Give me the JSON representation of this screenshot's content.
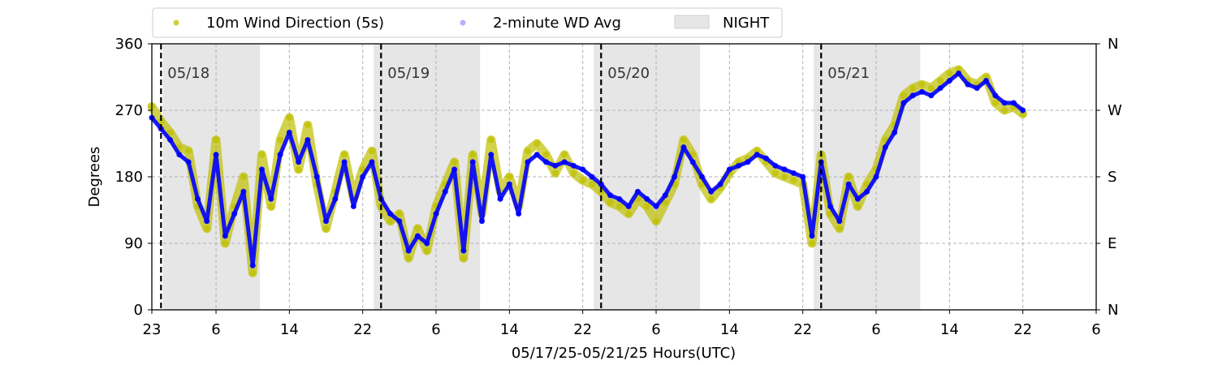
{
  "chart_data": {
    "type": "scatter",
    "title": "",
    "xlabel": "05/17/25-05/21/25  Hours(UTC)",
    "ylabel": "Degrees",
    "x_tick_labels": [
      "23",
      "6",
      "14",
      "22",
      "6",
      "14",
      "22",
      "6",
      "14",
      "22",
      "6",
      "14",
      "22",
      "6"
    ],
    "x_tick_hours": [
      23,
      30,
      38,
      46,
      54,
      62,
      70,
      78,
      86,
      94,
      102,
      110,
      118,
      126
    ],
    "x_range_hours": [
      23,
      126
    ],
    "y_ticks": [
      0,
      90,
      180,
      270,
      360
    ],
    "y_tick_labels": [
      "0",
      "90",
      "180",
      "270",
      "360"
    ],
    "ylim": [
      0,
      360
    ],
    "right_axis_labels": [
      "N",
      "E",
      "S",
      "W",
      "N"
    ],
    "grid": true,
    "legend_placement": "top-left, above plot",
    "legend": [
      {
        "name": "10m Wind Direction (5s)",
        "kind": "marker",
        "color": "#bfbf00"
      },
      {
        "name": "2-minute WD Avg",
        "kind": "marker",
        "color": "#0000ff"
      },
      {
        "name": "NIGHT",
        "kind": "patch",
        "color": "#e0e0e0"
      }
    ],
    "day_boundaries": [
      {
        "hour": 24,
        "label": "05/18"
      },
      {
        "hour": 48,
        "label": "05/19"
      },
      {
        "hour": 72,
        "label": "05/20"
      },
      {
        "hour": 96,
        "label": "05/21"
      }
    ],
    "night_periods": [
      {
        "start": 24.2,
        "end": 34.8
      },
      {
        "start": 47.2,
        "end": 58.8
      },
      {
        "start": 71.2,
        "end": 82.8
      },
      {
        "start": 95.2,
        "end": 106.8
      }
    ],
    "data_end_hour": 118,
    "series": [
      {
        "name": "2-minute WD Avg",
        "color": "#0000ff",
        "x": [
          23.0,
          24.0,
          25.0,
          26.0,
          27.0,
          28.0,
          29.0,
          30.0,
          31.0,
          32.0,
          33.0,
          34.0,
          35.0,
          36.0,
          37.0,
          38.0,
          39.0,
          40.0,
          41.0,
          42.0,
          43.0,
          44.0,
          45.0,
          46.0,
          47.0,
          48.0,
          49.0,
          50.0,
          51.0,
          52.0,
          53.0,
          54.0,
          55.0,
          56.0,
          57.0,
          58.0,
          59.0,
          60.0,
          61.0,
          62.0,
          63.0,
          64.0,
          65.0,
          66.0,
          67.0,
          68.0,
          69.0,
          70.0,
          71.0,
          72.0,
          73.0,
          74.0,
          75.0,
          76.0,
          77.0,
          78.0,
          79.0,
          80.0,
          81.0,
          82.0,
          83.0,
          84.0,
          85.0,
          86.0,
          87.0,
          88.0,
          89.0,
          90.0,
          91.0,
          92.0,
          93.0,
          94.0,
          95.0,
          96.0,
          97.0,
          98.0,
          99.0,
          100.0,
          101.0,
          102.0,
          103.0,
          104.0,
          105.0,
          106.0,
          107.0,
          108.0,
          109.0,
          110.0,
          111.0,
          112.0,
          113.0,
          114.0,
          115.0,
          116.0,
          117.0,
          118.0
        ],
        "values": [
          260,
          245,
          230,
          210,
          200,
          150,
          120,
          210,
          100,
          130,
          160,
          60,
          190,
          150,
          210,
          240,
          200,
          230,
          180,
          120,
          150,
          200,
          140,
          180,
          200,
          150,
          130,
          120,
          80,
          100,
          90,
          130,
          160,
          190,
          80,
          200,
          120,
          210,
          150,
          170,
          130,
          200,
          210,
          200,
          195,
          200,
          195,
          190,
          180,
          170,
          155,
          150,
          140,
          160,
          150,
          140,
          155,
          180,
          220,
          200,
          180,
          160,
          170,
          190,
          195,
          200,
          210,
          205,
          195,
          190,
          185,
          180,
          100,
          200,
          140,
          120,
          170,
          150,
          160,
          180,
          220,
          240,
          280,
          290,
          295,
          290,
          300,
          310,
          320,
          305,
          300,
          310,
          290,
          280,
          280,
          270
        ]
      },
      {
        "name": "10m Wind Direction (5s)",
        "color": "#bfbf00",
        "x": [
          23.0,
          24.0,
          25.0,
          26.0,
          27.0,
          28.0,
          29.0,
          30.0,
          31.0,
          32.0,
          33.0,
          34.0,
          35.0,
          36.0,
          37.0,
          38.0,
          39.0,
          40.0,
          41.0,
          42.0,
          43.0,
          44.0,
          45.0,
          46.0,
          47.0,
          48.0,
          49.0,
          50.0,
          51.0,
          52.0,
          53.0,
          54.0,
          55.0,
          56.0,
          57.0,
          58.0,
          59.0,
          60.0,
          61.0,
          62.0,
          63.0,
          64.0,
          65.0,
          66.0,
          67.0,
          68.0,
          69.0,
          70.0,
          71.0,
          72.0,
          73.0,
          74.0,
          75.0,
          76.0,
          77.0,
          78.0,
          79.0,
          80.0,
          81.0,
          82.0,
          83.0,
          84.0,
          85.0,
          86.0,
          87.0,
          88.0,
          89.0,
          90.0,
          91.0,
          92.0,
          93.0,
          94.0,
          95.0,
          96.0,
          97.0,
          98.0,
          99.0,
          100.0,
          101.0,
          102.0,
          103.0,
          104.0,
          105.0,
          106.0,
          107.0,
          108.0,
          109.0,
          110.0,
          111.0,
          112.0,
          113.0,
          114.0,
          115.0,
          116.0,
          117.0,
          118.0
        ],
        "values": [
          275,
          255,
          240,
          220,
          215,
          140,
          110,
          230,
          90,
          140,
          180,
          50,
          210,
          140,
          230,
          260,
          190,
          250,
          170,
          110,
          160,
          210,
          150,
          190,
          215,
          140,
          120,
          130,
          70,
          110,
          80,
          140,
          170,
          200,
          70,
          210,
          130,
          230,
          160,
          180,
          140,
          215,
          225,
          210,
          185,
          210,
          185,
          175,
          170,
          160,
          145,
          140,
          130,
          150,
          140,
          120,
          145,
          170,
          230,
          210,
          170,
          150,
          165,
          185,
          200,
          205,
          215,
          200,
          185,
          180,
          175,
          170,
          90,
          210,
          130,
          110,
          180,
          140,
          170,
          190,
          230,
          250,
          290,
          300,
          305,
          300,
          310,
          320,
          325,
          310,
          305,
          315,
          280,
          270,
          275,
          265
        ]
      }
    ]
  }
}
